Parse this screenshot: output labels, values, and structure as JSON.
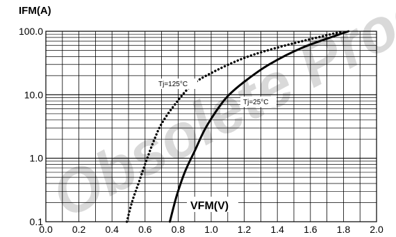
{
  "chart_data": {
    "type": "line",
    "title": "",
    "ylabel": "IFM(A)",
    "xlabel": "VFM(V)",
    "x_scale": "linear",
    "y_scale": "log",
    "xlim": [
      0.0,
      2.0
    ],
    "ylim": [
      0.1,
      100.0
    ],
    "x_ticks": [
      "0.0",
      "0.2",
      "0.4",
      "0.6",
      "0.8",
      "1.0",
      "1.2",
      "1.4",
      "1.6",
      "1.8",
      "2.0"
    ],
    "y_ticks": [
      "0.1",
      "1.0",
      "10.0",
      "100.0"
    ],
    "grid": true,
    "watermark": "Obsolete Product",
    "series": [
      {
        "name": "Tj=125°C",
        "style": "dotted",
        "x": [
          0.49,
          0.52,
          0.56,
          0.6,
          0.65,
          0.7,
          0.78,
          0.88,
          1.0,
          1.2,
          1.45,
          1.8
        ],
        "y": [
          0.1,
          0.2,
          0.4,
          0.8,
          1.8,
          3.5,
          7.0,
          14.0,
          22.0,
          38.0,
          60.0,
          100.0
        ]
      },
      {
        "name": "Tj=25°C",
        "style": "solid",
        "x": [
          0.75,
          0.79,
          0.84,
          0.9,
          0.96,
          1.03,
          1.1,
          1.2,
          1.35,
          1.55,
          1.83
        ],
        "y": [
          0.1,
          0.25,
          0.6,
          1.3,
          2.8,
          5.5,
          9.5,
          16.0,
          30.0,
          55.0,
          100.0
        ]
      }
    ]
  }
}
